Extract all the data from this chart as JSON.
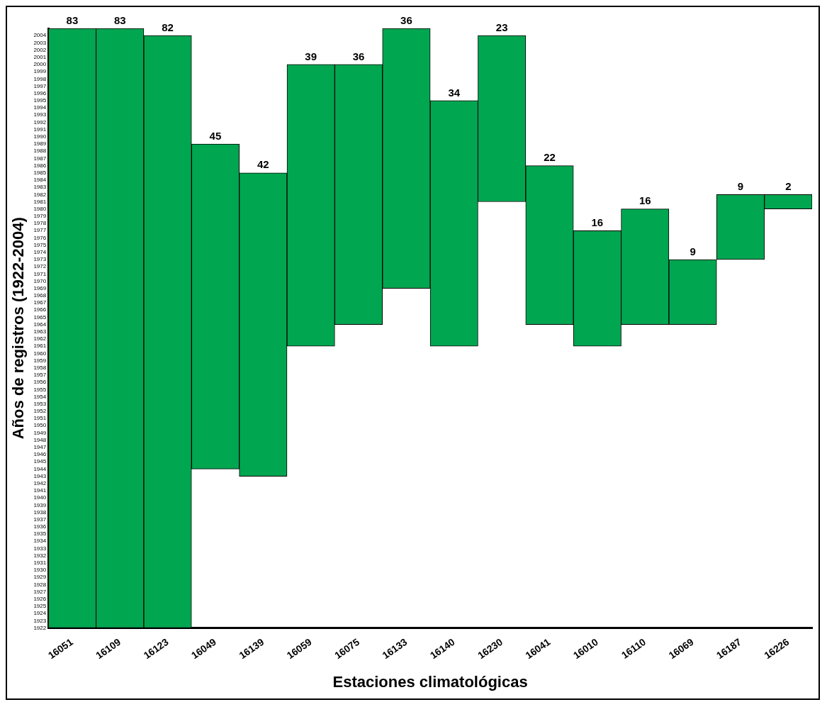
{
  "chart_data": {
    "type": "bar",
    "xlabel": "Estaciones climatológicas",
    "ylabel": "Años de registros (1922-2004)",
    "categories": [
      "16051",
      "16109",
      "16123",
      "16049",
      "16139",
      "16059",
      "16075",
      "16133",
      "16140",
      "16230",
      "16041",
      "16010",
      "16110",
      "16069",
      "16187",
      "16226"
    ],
    "values": [
      83,
      83,
      82,
      45,
      42,
      39,
      36,
      36,
      34,
      23,
      22,
      16,
      16,
      9,
      9,
      2
    ],
    "base": [
      1922,
      1922,
      1922,
      1944,
      1943,
      1961,
      1964,
      1969,
      1961,
      1981,
      1964,
      1961,
      1964,
      1964,
      1973,
      1980
    ],
    "color": "#00a650",
    "data_labels": true,
    "grid": false,
    "legend": false,
    "ylim": [
      1922,
      2005
    ],
    "yticks": [
      1922,
      1923,
      1924,
      1925,
      1926,
      1927,
      1928,
      1929,
      1930,
      1931,
      1932,
      1933,
      1934,
      1935,
      1936,
      1937,
      1938,
      1939,
      1940,
      1941,
      1942,
      1943,
      1944,
      1945,
      1946,
      1947,
      1948,
      1949,
      1950,
      1951,
      1952,
      1953,
      1954,
      1955,
      1956,
      1957,
      1958,
      1959,
      1960,
      1961,
      1962,
      1963,
      1964,
      1965,
      1966,
      1967,
      1968,
      1969,
      1970,
      1971,
      1972,
      1973,
      1974,
      1975,
      1976,
      1977,
      1978,
      1979,
      1980,
      1981,
      1982,
      1983,
      1984,
      1985,
      1986,
      1987,
      1988,
      1989,
      1990,
      1991,
      1992,
      1993,
      1994,
      1995,
      1996,
      1997,
      1998,
      1999,
      2000,
      2001,
      2002,
      2003,
      2004
    ]
  }
}
